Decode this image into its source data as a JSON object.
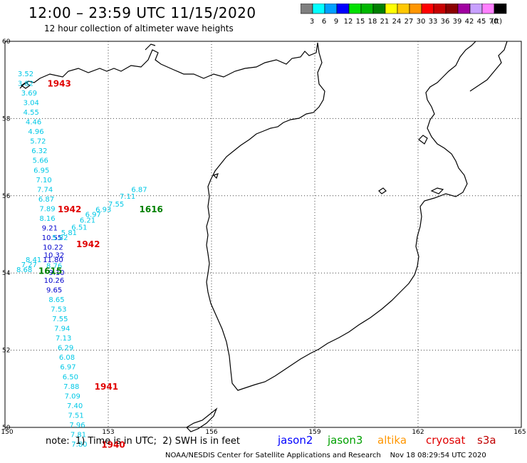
{
  "header": {
    "title": "12:00 – 23:59 UTC 11/15/2020",
    "subtitle": "12 hour collection of altimeter wave heights"
  },
  "colorbar": {
    "unit": "(ft)",
    "bins": [
      {
        "color": "#7f7f7f",
        "label": "3"
      },
      {
        "color": "#00ffff",
        "label": "6"
      },
      {
        "color": "#00a0ff",
        "label": "9"
      },
      {
        "color": "#0000ff",
        "label": "12"
      },
      {
        "color": "#00e000",
        "label": "15"
      },
      {
        "color": "#00b800",
        "label": "18"
      },
      {
        "color": "#008000",
        "label": "21"
      },
      {
        "color": "#ffff00",
        "label": "24"
      },
      {
        "color": "#ffc800",
        "label": "27"
      },
      {
        "color": "#ff9600",
        "label": "30"
      },
      {
        "color": "#ff0000",
        "label": "33"
      },
      {
        "color": "#c80000",
        "label": "36"
      },
      {
        "color": "#8b0000",
        "label": "39"
      },
      {
        "color": "#a000a0",
        "label": "42"
      },
      {
        "color": "#c8a0ff",
        "label": "45"
      },
      {
        "color": "#ff80ff",
        "label": "70"
      },
      {
        "color": "#000000",
        "label": ""
      }
    ]
  },
  "map": {
    "lon_range": [
      150,
      165
    ],
    "lat_range": [
      50,
      60
    ],
    "lon_ticks": [
      "150",
      "153",
      "156",
      "159",
      "162",
      "165"
    ],
    "lat_ticks": [
      "50",
      "52",
      "54",
      "56",
      "58",
      "60"
    ],
    "gridlines": "dotted"
  },
  "observations": [
    {
      "v": "3.52",
      "c": "#00c8e6",
      "lon": 150.37,
      "lat": 59.1
    },
    {
      "v": "3.82",
      "c": "#00c8e6",
      "lon": 150.37,
      "lat": 58.85
    },
    {
      "v": "3.69",
      "c": "#00c8e6",
      "lon": 150.47,
      "lat": 58.6
    },
    {
      "v": "3.04",
      "c": "#00c8e6",
      "lon": 150.53,
      "lat": 58.35
    },
    {
      "v": "4.55",
      "c": "#00c8e6",
      "lon": 150.53,
      "lat": 58.1
    },
    {
      "v": "4.46",
      "c": "#00c8e6",
      "lon": 150.6,
      "lat": 57.85
    },
    {
      "v": "4.96",
      "c": "#00c8e6",
      "lon": 150.67,
      "lat": 57.6
    },
    {
      "v": "5.72",
      "c": "#00c8e6",
      "lon": 150.73,
      "lat": 57.35
    },
    {
      "v": "6.32",
      "c": "#00c8e6",
      "lon": 150.77,
      "lat": 57.1
    },
    {
      "v": "5.66",
      "c": "#00c8e6",
      "lon": 150.8,
      "lat": 56.85
    },
    {
      "v": "6.95",
      "c": "#00c8e6",
      "lon": 150.83,
      "lat": 56.6
    },
    {
      "v": "7.10",
      "c": "#00c8e6",
      "lon": 150.9,
      "lat": 56.35
    },
    {
      "v": "7.74",
      "c": "#00c8e6",
      "lon": 150.93,
      "lat": 56.1
    },
    {
      "v": "6.87",
      "c": "#00c8e6",
      "lon": 150.97,
      "lat": 55.85
    },
    {
      "v": "7.89",
      "c": "#00c8e6",
      "lon": 151.0,
      "lat": 55.6
    },
    {
      "v": "8.16",
      "c": "#00c8e6",
      "lon": 151.0,
      "lat": 55.35
    },
    {
      "v": "9.21",
      "c": "#0000cd",
      "lon": 151.07,
      "lat": 55.1
    },
    {
      "v": "10.55",
      "c": "#0000cd",
      "lon": 151.07,
      "lat": 54.85
    },
    {
      "v": "10.22",
      "c": "#0000cd",
      "lon": 151.1,
      "lat": 54.6
    },
    {
      "v": "10.32",
      "c": "#0000cd",
      "lon": 151.13,
      "lat": 54.4
    },
    {
      "v": "11.80",
      "c": "#0000cd",
      "lon": 151.1,
      "lat": 54.28
    },
    {
      "v": "8.76",
      "c": "#00c8e6",
      "lon": 151.2,
      "lat": 54.12
    },
    {
      "v": "9.10",
      "c": "#0000cd",
      "lon": 151.27,
      "lat": 53.95
    },
    {
      "v": "10.26",
      "c": "#0000cd",
      "lon": 151.13,
      "lat": 53.75
    },
    {
      "v": "9.65",
      "c": "#0000cd",
      "lon": 151.2,
      "lat": 53.5
    },
    {
      "v": "8.65",
      "c": "#00c8e6",
      "lon": 151.27,
      "lat": 53.25
    },
    {
      "v": "7.53",
      "c": "#00c8e6",
      "lon": 151.33,
      "lat": 53.0
    },
    {
      "v": "7.55",
      "c": "#00c8e6",
      "lon": 151.37,
      "lat": 52.75
    },
    {
      "v": "7.94",
      "c": "#00c8e6",
      "lon": 151.43,
      "lat": 52.5
    },
    {
      "v": "7.13",
      "c": "#00c8e6",
      "lon": 151.47,
      "lat": 52.25
    },
    {
      "v": "6.29",
      "c": "#00c8e6",
      "lon": 151.53,
      "lat": 52.0
    },
    {
      "v": "6.08",
      "c": "#00c8e6",
      "lon": 151.57,
      "lat": 51.75
    },
    {
      "v": "6.97",
      "c": "#00c8e6",
      "lon": 151.6,
      "lat": 51.5
    },
    {
      "v": "6.50",
      "c": "#00c8e6",
      "lon": 151.67,
      "lat": 51.25
    },
    {
      "v": "7.88",
      "c": "#00c8e6",
      "lon": 151.7,
      "lat": 51.0
    },
    {
      "v": "7.09",
      "c": "#00c8e6",
      "lon": 151.73,
      "lat": 50.75
    },
    {
      "v": "7.40",
      "c": "#00c8e6",
      "lon": 151.8,
      "lat": 50.5
    },
    {
      "v": "7.51",
      "c": "#00c8e6",
      "lon": 151.83,
      "lat": 50.25
    },
    {
      "v": "7.96",
      "c": "#00c8e6",
      "lon": 151.87,
      "lat": 50.0
    },
    {
      "v": "7.81",
      "c": "#00c8e6",
      "lon": 151.9,
      "lat": 49.75
    },
    {
      "v": "7.80",
      "c": "#00c8e6",
      "lon": 151.93,
      "lat": 49.5
    },
    {
      "v": "6.87",
      "c": "#00c8e6",
      "lon": 153.67,
      "lat": 56.1
    },
    {
      "v": "7.11",
      "c": "#00c8e6",
      "lon": 153.33,
      "lat": 55.92
    },
    {
      "v": "7.55",
      "c": "#00c8e6",
      "lon": 153.0,
      "lat": 55.72
    },
    {
      "v": "6.93",
      "c": "#00c8e6",
      "lon": 152.63,
      "lat": 55.58
    },
    {
      "v": "6.97",
      "c": "#00c8e6",
      "lon": 152.33,
      "lat": 55.45
    },
    {
      "v": "6.21",
      "c": "#00c8e6",
      "lon": 152.17,
      "lat": 55.3
    },
    {
      "v": "6.51",
      "c": "#00c8e6",
      "lon": 151.93,
      "lat": 55.12
    },
    {
      "v": "5.81",
      "c": "#00c8e6",
      "lon": 151.63,
      "lat": 54.98
    },
    {
      "v": "5.82",
      "c": "#00c8e6",
      "lon": 151.37,
      "lat": 54.85
    },
    {
      "v": "8.41",
      "c": "#00c8e6",
      "lon": 150.6,
      "lat": 54.28
    },
    {
      "v": "7.27",
      "c": "#00c8e6",
      "lon": 150.47,
      "lat": 54.15
    },
    {
      "v": "8.68",
      "c": "#00c8e6",
      "lon": 150.33,
      "lat": 54.02
    }
  ],
  "time_labels": [
    {
      "t": "1943",
      "c": "#e00000",
      "lon": 151.23,
      "lat": 58.83
    },
    {
      "t": "1942",
      "c": "#e00000",
      "lon": 151.53,
      "lat": 55.57
    },
    {
      "t": "1942",
      "c": "#e00000",
      "lon": 152.07,
      "lat": 54.67
    },
    {
      "t": "1616",
      "c": "#008000",
      "lon": 153.9,
      "lat": 55.57
    },
    {
      "t": "1615",
      "c": "#008000",
      "lon": 150.97,
      "lat": 53.98
    },
    {
      "t": "1941",
      "c": "#e00000",
      "lon": 152.6,
      "lat": 50.98
    },
    {
      "t": "1940",
      "c": "#e00000",
      "lon": 152.8,
      "lat": 49.47
    }
  ],
  "satellites": [
    {
      "name": "jason2",
      "color": "#0000ff"
    },
    {
      "name": "jason3",
      "color": "#00a000"
    },
    {
      "name": "altika",
      "color": "#ff9600"
    },
    {
      "name": "cryosat",
      "color": "#e00000"
    },
    {
      "name": "s3a",
      "color": "#c00000"
    }
  ],
  "footer": {
    "note": "note:  1) Time is in UTC;  2) SWH is in feet",
    "credit": "NOAA/NESDIS Center for Satellite Applications and Research    Nov 18 08:29:54 UTC 2020"
  }
}
